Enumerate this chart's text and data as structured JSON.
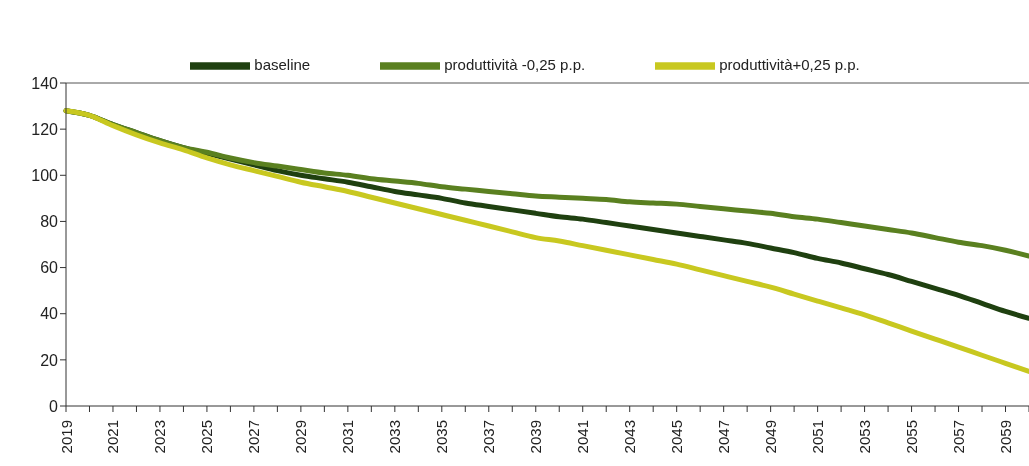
{
  "chart_data": {
    "type": "line",
    "categories": [
      "2019",
      null,
      "2021",
      null,
      "2023",
      null,
      "2025",
      null,
      "2027",
      null,
      "2029",
      null,
      "2031",
      null,
      "2033",
      null,
      "2035",
      null,
      "2037",
      null,
      "2039",
      null,
      "2041",
      null,
      "2043",
      null,
      "2045",
      null,
      "2047",
      null,
      "2049",
      null,
      "2051",
      null,
      "2053",
      null,
      "2055",
      null,
      "2057",
      null,
      "2059",
      null
    ],
    "series": [
      {
        "name": "baseline",
        "color": "#1f4010",
        "values": [
          128,
          126,
          122,
          118.5,
          115,
          112,
          109.5,
          107,
          104.5,
          102,
          100,
          98.5,
          97,
          95,
          93,
          91.5,
          90,
          88,
          86.5,
          85,
          83.5,
          82,
          81,
          79.5,
          78,
          76.5,
          75,
          73.5,
          72,
          70.5,
          68.5,
          66.5,
          64,
          62,
          59.5,
          57,
          54,
          51,
          48,
          44.5,
          41,
          38
        ]
      },
      {
        "name": "produttività -0,25 p.p.",
        "color": "#5a8020",
        "values": [
          128,
          126,
          122,
          118.5,
          115,
          112,
          110,
          107.5,
          105.5,
          104,
          102.5,
          101,
          100,
          98.5,
          97.5,
          96.5,
          95,
          94,
          93,
          92,
          91,
          90.5,
          90,
          89.5,
          88.5,
          88,
          87.5,
          86.5,
          85.5,
          84.5,
          83.5,
          82,
          81,
          79.5,
          78,
          76.5,
          75,
          73,
          71,
          69.5,
          67.5,
          65
        ]
      },
      {
        "name": "produttività+0,25 p.p.",
        "color": "#c8c820",
        "values": [
          128,
          126,
          121.5,
          117.5,
          114,
          111,
          107.5,
          104.5,
          102,
          99.5,
          97,
          95,
          93,
          90.5,
          88,
          85.5,
          83,
          80.5,
          78,
          75.5,
          73,
          71.5,
          69.5,
          67.5,
          65.5,
          63.5,
          61.5,
          59,
          56.5,
          54,
          51.5,
          48.5,
          45.5,
          42.5,
          39.5,
          36,
          32.5,
          29,
          25.5,
          22,
          18.5,
          15
        ]
      }
    ],
    "ylim": [
      0,
      140
    ],
    "yticks": [
      0,
      20,
      40,
      60,
      80,
      100,
      120,
      140
    ],
    "grid": false,
    "legend": "top",
    "marker": "none",
    "line_style": "solid"
  }
}
